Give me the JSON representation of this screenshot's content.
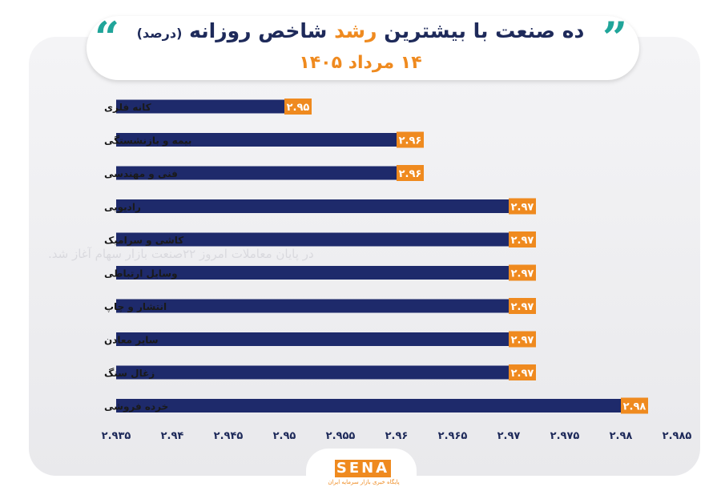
{
  "title": {
    "part1": "ده صنعت با بیشترین",
    "highlight": "رشد",
    "part2": "شاخص روزانه",
    "paren": "(درصد)"
  },
  "subtitle": "۱۴ مرداد ۱۴۰۵",
  "watermark": "در پایان معاملات امروز ۲۲صنعت بازار سهام آغاز شد.",
  "logo": {
    "text": "SENA",
    "tagline": "پایگاه خبری بازار سرمایه ایران"
  },
  "colors": {
    "bar": "#1e2a6b",
    "label_bg": "#ef8a1f",
    "accent": "#20a59a"
  },
  "chart_data": {
    "type": "bar",
    "orientation": "horizontal",
    "categories": [
      "کانه فلزی",
      "بیمه و بازنشستگی",
      "فنی و مهندسی",
      "رادیویی",
      "کاشی و سرامیک",
      "وسایل ارتباطی",
      "انتشار و چاپ",
      "سایر معادن",
      "زغال سنگ",
      "خرده فروشی"
    ],
    "values": [
      2.95,
      2.96,
      2.96,
      2.97,
      2.97,
      2.97,
      2.97,
      2.97,
      2.97,
      2.98
    ],
    "value_labels": [
      "۲.۹۵",
      "۲.۹۶",
      "۲.۹۶",
      "۲.۹۷",
      "۲.۹۷",
      "۲.۹۷",
      "۲.۹۷",
      "۲.۹۷",
      "۲.۹۷",
      "۲.۹۸"
    ],
    "xlim": [
      2.935,
      2.985
    ],
    "xticks": [
      2.935,
      2.94,
      2.945,
      2.95,
      2.955,
      2.96,
      2.965,
      2.97,
      2.975,
      2.98,
      2.985
    ],
    "xtick_labels": [
      "۲.۹۳۵",
      "۲.۹۴",
      "۲.۹۴۵",
      "۲.۹۵",
      "۲.۹۵۵",
      "۲.۹۶",
      "۲.۹۶۵",
      "۲.۹۷",
      "۲.۹۷۵",
      "۲.۹۸",
      "۲.۹۸۵"
    ],
    "grid": false,
    "legend": "none"
  }
}
